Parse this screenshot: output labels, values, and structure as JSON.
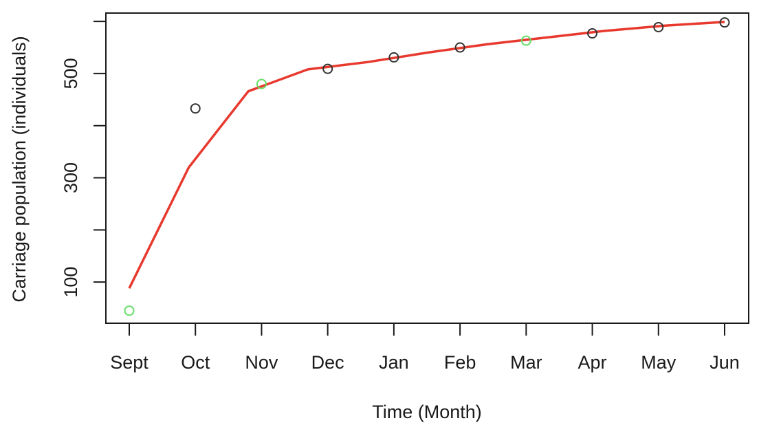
{
  "chart_data": {
    "type": "scatter",
    "title": "",
    "xlabel": "Time (Month)",
    "ylabel": "Carriage population (individuals)",
    "categories": [
      "Sept",
      "Oct",
      "Nov",
      "Dec",
      "Jan",
      "Feb",
      "Mar",
      "Apr",
      "May",
      "Jun"
    ],
    "ylim": [
      21,
      616
    ],
    "yticks": [
      100,
      200,
      300,
      400,
      500,
      600
    ],
    "ytick_labels": [
      "100",
      "",
      "300",
      "",
      "500",
      ""
    ],
    "grid": false,
    "legend": "none",
    "series": [
      {
        "kind": "points",
        "values": [
          45,
          433,
          480,
          509,
          531,
          550,
          563,
          577,
          589,
          598
        ],
        "point_colors": [
          "#66dd66",
          "#333333",
          "#66dd66",
          "#333333",
          "#333333",
          "#333333",
          "#66dd66",
          "#333333",
          "#333333",
          "#333333"
        ]
      },
      {
        "kind": "line",
        "color": "#e8392e",
        "x": [
          0,
          0.9,
          1.8,
          2.7,
          3.6,
          4.5,
          5.4,
          6.3,
          7.2,
          8.1,
          9
        ],
        "values": [
          88,
          320,
          466,
          508,
          522,
          540,
          556,
          569,
          582,
          592,
          599
        ]
      }
    ]
  }
}
